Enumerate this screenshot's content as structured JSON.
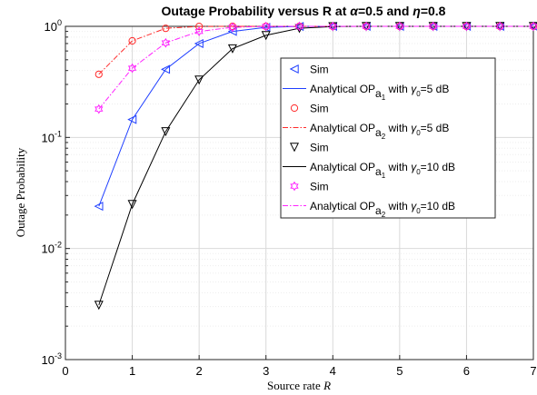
{
  "chart_data": {
    "type": "line",
    "title": {
      "prefix": "Outage Probability versus R at ",
      "alpha_symbol": "α",
      "alpha_value": "=0.5 and ",
      "eta_symbol": "η",
      "eta_value": "=0.8"
    },
    "xlabel": {
      "text": "Source rate ",
      "var": "R"
    },
    "ylabel": "Outage Probability",
    "xlim": [
      0,
      7
    ],
    "ylim": [
      0.001,
      1
    ],
    "yscale": "log",
    "grid": true,
    "xticks": [
      0,
      1,
      2,
      3,
      4,
      5,
      6,
      7
    ],
    "yticks": [
      {
        "value": 0.001,
        "base": "10",
        "exp": "-3"
      },
      {
        "value": 0.01,
        "base": "10",
        "exp": "-2"
      },
      {
        "value": 0.1,
        "base": "10",
        "exp": "-1"
      },
      {
        "value": 1,
        "base": "10",
        "exp": "0"
      }
    ],
    "x": [
      0.5,
      1,
      1.5,
      2,
      2.5,
      3,
      3.5,
      4,
      4.5,
      5,
      5.5,
      6,
      6.5,
      7
    ],
    "series": [
      {
        "key": "a1_5db",
        "values": [
          0.024,
          0.145,
          0.41,
          0.7,
          0.9,
          0.98,
          0.998,
          1,
          1,
          1,
          1,
          1,
          1,
          1
        ],
        "color": "#1f3fff",
        "line_dash": "",
        "marker": "triangle-left"
      },
      {
        "key": "a2_5db",
        "values": [
          0.37,
          0.74,
          0.96,
          0.998,
          1,
          1,
          1,
          1,
          1,
          1,
          1,
          1,
          1,
          1
        ],
        "color": "#ff2a2a",
        "line_dash": "6 2 1.5 2",
        "marker": "circle"
      },
      {
        "key": "a1_10db",
        "values": [
          0.0031,
          0.025,
          0.113,
          0.33,
          0.63,
          0.83,
          0.96,
          0.996,
          1,
          1,
          1,
          1,
          1,
          1
        ],
        "color": "#000000",
        "line_dash": "",
        "marker": "triangle-down"
      },
      {
        "key": "a2_10db",
        "values": [
          0.18,
          0.42,
          0.71,
          0.9,
          0.98,
          0.998,
          1,
          1,
          1,
          1,
          1,
          1,
          1,
          1
        ],
        "color": "#ff22ff",
        "line_dash": "6 2 1.5 2",
        "marker": "hexagram"
      }
    ],
    "legend": {
      "position": "center-right",
      "entries": [
        {
          "kind": "marker",
          "series": "a1_5db",
          "label": "Sim"
        },
        {
          "kind": "line",
          "series": "a1_5db",
          "pre": "Analytical OP",
          "sub_a": "a",
          "sub_i": "1",
          "mid": " with ",
          "gamma": "γ",
          "gsub": "0",
          "post": "=5 dB"
        },
        {
          "kind": "marker",
          "series": "a2_5db",
          "label": "Sim"
        },
        {
          "kind": "line",
          "series": "a2_5db",
          "pre": "Analytical OP",
          "sub_a": "a",
          "sub_i": "2",
          "mid": " with ",
          "gamma": "γ",
          "gsub": "0",
          "post": "=5 dB"
        },
        {
          "kind": "marker",
          "series": "a1_10db",
          "label": "Sim"
        },
        {
          "kind": "line",
          "series": "a1_10db",
          "pre": "Analytical OP",
          "sub_a": "a",
          "sub_i": "1",
          "mid": " with ",
          "gamma": "γ",
          "gsub": "0",
          "post": "=10 dB"
        },
        {
          "kind": "marker",
          "series": "a2_10db",
          "label": "Sim"
        },
        {
          "kind": "line",
          "series": "a2_10db",
          "pre": "Analytical OP",
          "sub_a": "a",
          "sub_i": "2",
          "mid": " with ",
          "gamma": "γ",
          "gsub": "0",
          "post": "=10 dB"
        }
      ]
    }
  }
}
